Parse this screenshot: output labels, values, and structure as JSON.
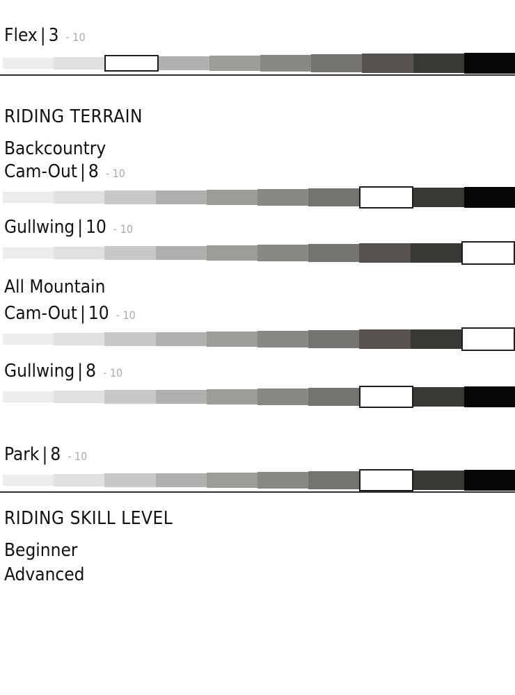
{
  "ui": {
    "pipe": "|"
  },
  "bar": {
    "segment_count": 10,
    "segment_colors": [
      "#ececea",
      "#e1e0de",
      "#c9c8c6",
      "#b2b0ae",
      "#9e9c99",
      "#8a8885",
      "#757370",
      "#575450",
      "#3a3835",
      "#070605"
    ],
    "selected_fill": "#ffffff",
    "selected_border": "#1c1c1c"
  },
  "flex": {
    "name": "Flex",
    "value": "3",
    "suffix": "- 10",
    "rating": 3
  },
  "terrain": {
    "title": "RIDING TERRAIN",
    "groups": [
      {
        "heading": "Backcountry",
        "metrics": [
          {
            "name": "Cam-Out",
            "value": "8",
            "suffix": "- 10",
            "rating": 8
          },
          {
            "name": "Gullwing",
            "value": "10",
            "suffix": "- 10",
            "rating": 10
          }
        ]
      },
      {
        "heading": "All Mountain",
        "metrics": [
          {
            "name": "Cam-Out",
            "value": "10",
            "suffix": "- 10",
            "rating": 10
          },
          {
            "name": "Gullwing",
            "value": "8",
            "suffix": "- 10",
            "rating": 8
          }
        ]
      },
      {
        "heading": "",
        "metrics": [
          {
            "name": "Park",
            "value": "8",
            "suffix": "- 10",
            "rating": 8
          }
        ]
      }
    ]
  },
  "skill": {
    "title": "RIDING SKILL LEVEL",
    "levels": [
      "Beginner",
      "Advanced"
    ]
  },
  "colors": {
    "text_primary": "#111111",
    "text_muted": "#ababab",
    "divider": "#2e2e2e"
  }
}
